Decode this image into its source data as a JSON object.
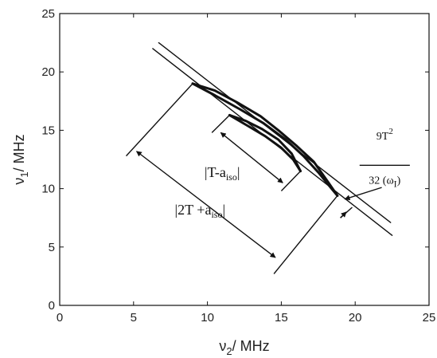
{
  "chart_data": {
    "type": "line",
    "title": "",
    "xlabel": {
      "base": "ν",
      "sub": "2",
      "rest": "/ MHz"
    },
    "ylabel": {
      "base": "ν",
      "sub": "1",
      "rest": "/ MHz"
    },
    "xlim": [
      0,
      25
    ],
    "ylim": [
      0,
      25
    ],
    "x_ticks": [
      "0",
      "5",
      "10",
      "15",
      "20",
      "25"
    ],
    "y_ticks": [
      "0",
      "5",
      "10",
      "15",
      "20",
      "25"
    ],
    "grid": false,
    "series": [
      {
        "x": [
          6.3,
          22.5
        ],
        "y": [
          22.0,
          6.0
        ]
      },
      {
        "x": [
          6.7,
          22.4
        ],
        "y": [
          22.5,
          7.1
        ]
      },
      {
        "x": [
          9.0,
          10.5,
          12.0,
          13.6,
          14.8,
          16.0,
          17.2,
          18.2,
          18.8
        ],
        "y": [
          19.0,
          18.4,
          17.4,
          16.2,
          15.0,
          13.7,
          12.3,
          10.5,
          9.4
        ]
      },
      {
        "x": [
          9.0,
          10.5,
          12.2,
          13.8,
          15.3,
          16.5,
          17.5,
          18.4,
          18.8
        ],
        "y": [
          19.0,
          18.0,
          16.8,
          15.6,
          14.2,
          12.8,
          11.4,
          10.0,
          9.4
        ]
      },
      {
        "x": [
          11.5,
          12.6,
          13.7,
          14.8,
          15.7,
          16.3
        ],
        "y": [
          16.3,
          15.8,
          15.1,
          14.2,
          13.0,
          11.5
        ]
      },
      {
        "x": [
          11.5,
          12.7,
          13.9,
          15.0,
          15.8,
          16.3
        ],
        "y": [
          16.3,
          15.4,
          14.5,
          13.5,
          12.5,
          11.5
        ]
      }
    ],
    "annotations": [
      {
        "parts": [
          {
            "t": "|2T +a"
          },
          {
            "t": "iso",
            "style": "sub"
          },
          {
            "t": "|"
          }
        ],
        "at": [
          9.5,
          7.8
        ]
      },
      {
        "parts": [
          {
            "t": "|T-a"
          },
          {
            "t": "iso",
            "style": "sub"
          },
          {
            "t": "|"
          }
        ],
        "at": [
          11.0,
          11.0
        ]
      },
      {
        "parts": [
          {
            "t": "9T"
          },
          {
            "t": "2",
            "style": "sup"
          }
        ],
        "at": [
          22.0,
          14.2
        ]
      },
      {
        "parts": [
          {
            "t": "32 (ω"
          },
          {
            "t": "I",
            "style": "sub"
          },
          {
            "t": ")"
          }
        ],
        "at": [
          22.0,
          10.4
        ]
      }
    ]
  }
}
